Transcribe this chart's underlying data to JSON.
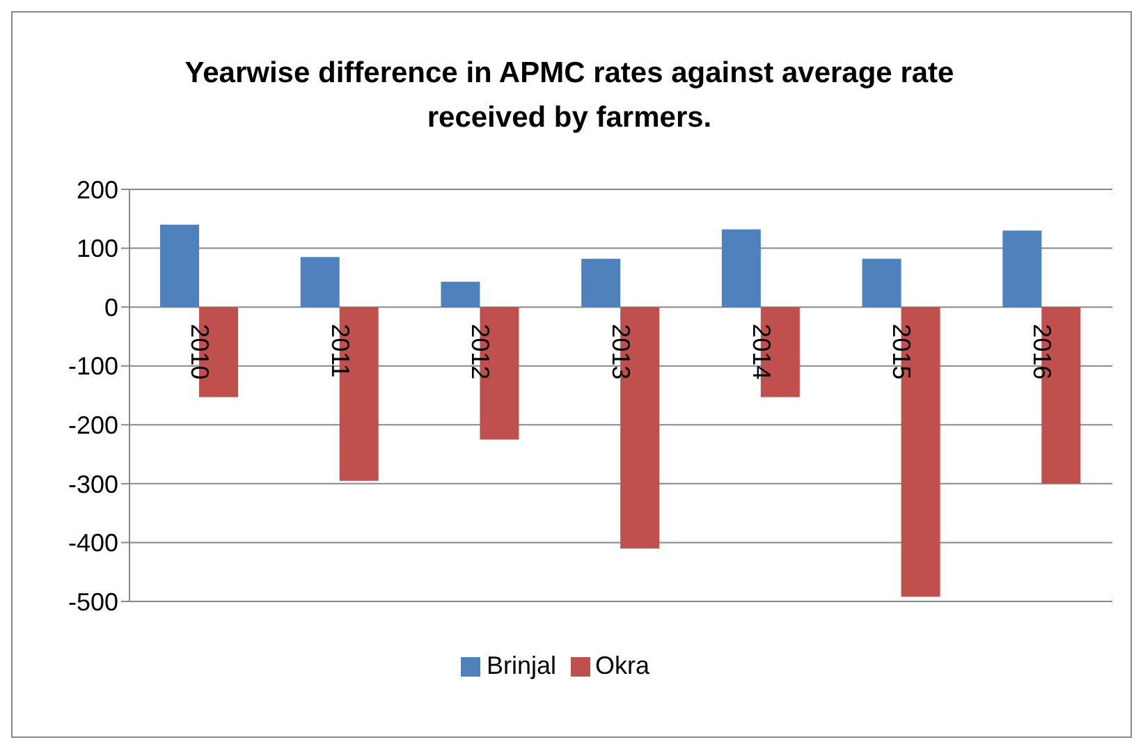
{
  "chart_data": {
    "type": "bar",
    "title": "Yearwise difference in APMC rates against average rate received by farmers.",
    "categories": [
      "2010",
      "2011",
      "2012",
      "2013",
      "2014",
      "2015",
      "2016"
    ],
    "series": [
      {
        "name": "Brinjal",
        "color": "#4f81bd",
        "values": [
          140,
          85,
          43,
          82,
          132,
          82,
          130
        ]
      },
      {
        "name": "Okra",
        "color": "#c0504d",
        "values": [
          -153,
          -295,
          -225,
          -410,
          -153,
          -492,
          -300
        ]
      }
    ],
    "ylim": [
      -500,
      200
    ],
    "yticks": [
      -500,
      -400,
      -300,
      -200,
      -100,
      0,
      100,
      200
    ],
    "grid": "y",
    "legend": "bottom"
  }
}
